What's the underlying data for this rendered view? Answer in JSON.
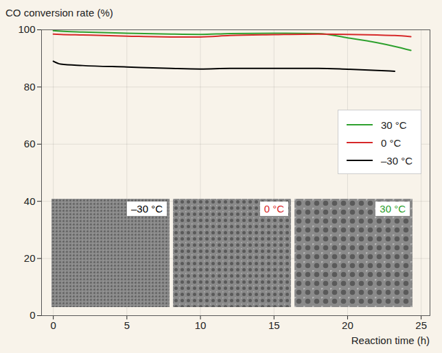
{
  "chart_data": {
    "type": "line",
    "y_label": "CO conversion rate (%)",
    "x_label": "Reaction time (h)",
    "x": [
      0,
      0.5,
      2,
      5,
      8,
      10,
      12,
      15,
      18,
      20,
      22,
      23.2,
      24.3
    ],
    "series": [
      {
        "name": "30 °C",
        "color": "#2ca02c",
        "values": [
          99.7,
          99.5,
          99.2,
          98.8,
          98.5,
          98.4,
          98.7,
          98.8,
          98.7,
          97.2,
          95.5,
          94.2,
          92.8
        ]
      },
      {
        "name": "0 °C",
        "color": "#d62728",
        "values": [
          98.5,
          98.4,
          98.2,
          97.8,
          97.5,
          97.5,
          98,
          98.3,
          98.5,
          98.4,
          98.2,
          98,
          97.6
        ]
      },
      {
        "name": "–30 °C",
        "color": "#000000",
        "values": [
          89,
          88,
          87.5,
          87,
          86.5,
          86.3,
          86.5,
          86.5,
          86.5,
          86.2,
          85.8,
          85.5,
          null
        ]
      }
    ],
    "xlim": [
      -0.8,
      25.6
    ],
    "xticks": [
      0,
      5,
      10,
      15,
      20,
      25
    ],
    "ylim": [
      0,
      100
    ],
    "yticks": [
      0,
      20,
      40,
      60,
      80,
      100
    ],
    "grid": true,
    "legend": "right",
    "inset_labels": [
      "–30 °C",
      "0 °C",
      "30 °C"
    ]
  }
}
